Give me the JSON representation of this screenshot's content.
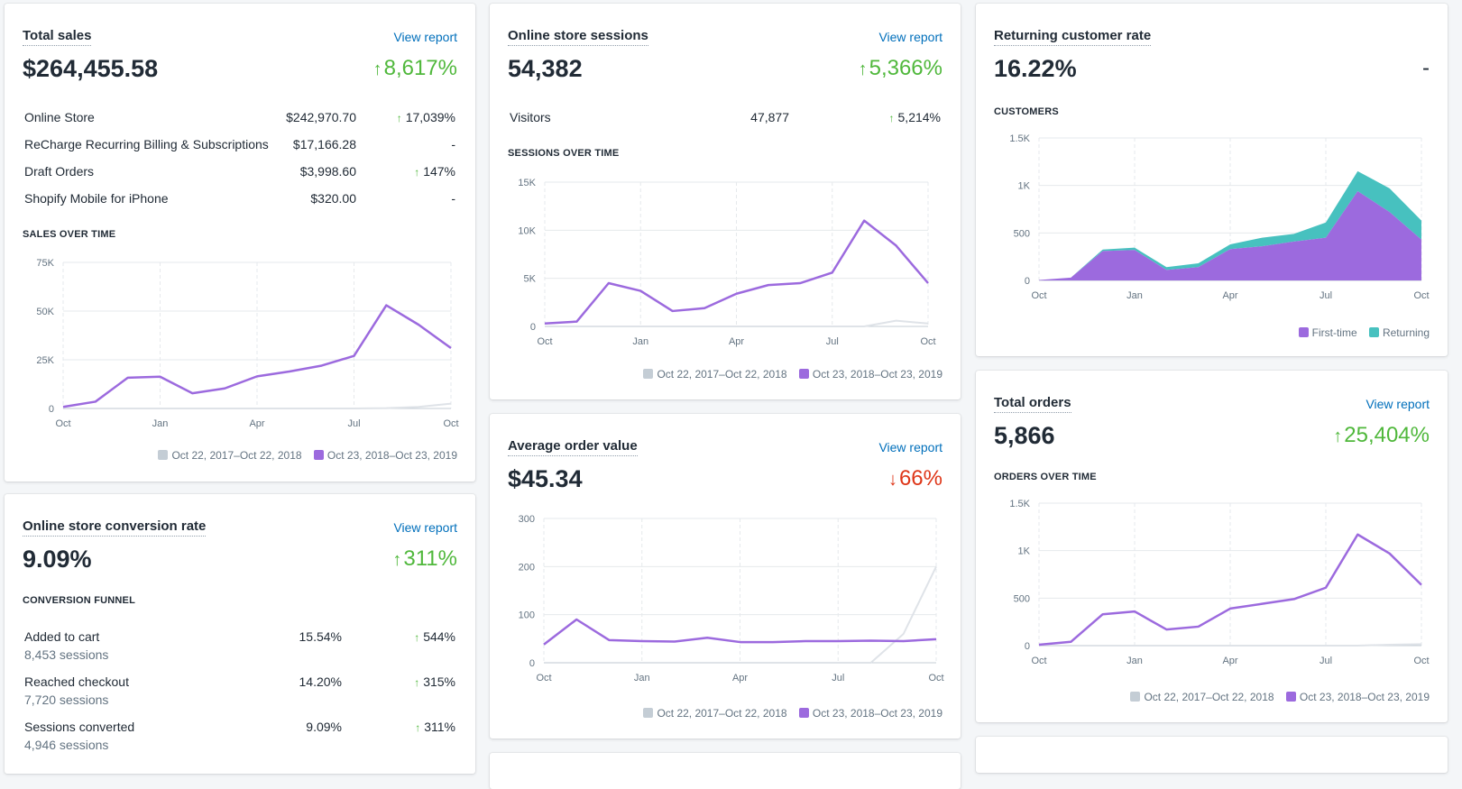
{
  "colors": {
    "current": "#9c6ade",
    "previous": "#dfe3e8",
    "returning": "#47c1bf",
    "up": "#50b83c",
    "down": "#de3618",
    "link": "#006fbb"
  },
  "common": {
    "view_report": "View report",
    "legend_prev": "Oct 22, 2017–Oct 22, 2018",
    "legend_curr": "Oct 23, 2018–Oct 23, 2019",
    "month_ticks": [
      "Oct",
      "Jan",
      "Apr",
      "Jul",
      "Oct"
    ]
  },
  "total_sales": {
    "title": "Total sales",
    "value": "$264,455.58",
    "change": "8,617%",
    "change_dir": "up",
    "rows": [
      {
        "name": "Online Store",
        "amount": "$242,970.70",
        "change": "17,039%",
        "dir": "up"
      },
      {
        "name": "ReCharge Recurring Billing & Subscriptions",
        "amount": "$17,166.28",
        "change": "-",
        "dir": "none"
      },
      {
        "name": "Draft Orders",
        "amount": "$3,998.60",
        "change": "147%",
        "dir": "up"
      },
      {
        "name": "Shopify Mobile for iPhone",
        "amount": "$320.00",
        "change": "-",
        "dir": "none"
      }
    ],
    "chart_label": "SALES OVER TIME"
  },
  "sessions": {
    "title": "Online store sessions",
    "value": "54,382",
    "change": "5,366%",
    "change_dir": "up",
    "rows": [
      {
        "name": "Visitors",
        "amount": "47,877",
        "change": "5,214%",
        "dir": "up"
      }
    ],
    "chart_label": "SESSIONS OVER TIME"
  },
  "returning": {
    "title": "Returning customer rate",
    "value": "16.22%",
    "change": "-",
    "chart_label": "CUSTOMERS",
    "legend_first": "First-time",
    "legend_returning": "Returning"
  },
  "conversion": {
    "title": "Online store conversion rate",
    "value": "9.09%",
    "change": "311%",
    "change_dir": "up",
    "section_label": "CONVERSION FUNNEL",
    "rows": [
      {
        "name": "Added to cart",
        "sub": "8,453 sessions",
        "pct": "15.54%",
        "change": "544%"
      },
      {
        "name": "Reached checkout",
        "sub": "7,720 sessions",
        "pct": "14.20%",
        "change": "315%"
      },
      {
        "name": "Sessions converted",
        "sub": "4,946 sessions",
        "pct": "9.09%",
        "change": "311%"
      }
    ]
  },
  "aov": {
    "title": "Average order value",
    "value": "$45.34",
    "change": "66%",
    "change_dir": "down"
  },
  "orders": {
    "title": "Total orders",
    "value": "5,866",
    "change": "25,404%",
    "change_dir": "up",
    "chart_label": "ORDERS OVER TIME"
  },
  "chart_data": [
    {
      "id": "sales",
      "type": "line",
      "x_ticks": [
        "Oct",
        "Jan",
        "Apr",
        "Jul",
        "Oct"
      ],
      "y_ticks": [
        "0",
        "25K",
        "50K",
        "75K"
      ],
      "ylim": [
        0,
        75000
      ],
      "series": [
        {
          "name": "Oct 23, 2018–Oct 23, 2019",
          "values": [
            800,
            3500,
            15800,
            16300,
            7800,
            10300,
            16500,
            19000,
            22000,
            27000,
            53000,
            43000,
            31000
          ]
        },
        {
          "name": "Oct 22, 2017–Oct 22, 2018",
          "values": [
            0,
            0,
            0,
            0,
            0,
            0,
            0,
            0,
            0,
            0,
            200,
            800,
            2500
          ]
        }
      ]
    },
    {
      "id": "sessions",
      "type": "line",
      "x_ticks": [
        "Oct",
        "Jan",
        "Apr",
        "Jul",
        "Oct"
      ],
      "y_ticks": [
        "0",
        "5K",
        "10K",
        "15K"
      ],
      "ylim": [
        0,
        15000
      ],
      "series": [
        {
          "name": "Oct 23, 2018–Oct 23, 2019",
          "values": [
            300,
            500,
            4500,
            3700,
            1600,
            1900,
            3400,
            4300,
            4500,
            5600,
            11000,
            8400,
            4500
          ]
        },
        {
          "name": "Oct 22, 2017–Oct 22, 2018",
          "values": [
            0,
            0,
            0,
            0,
            0,
            0,
            0,
            0,
            0,
            0,
            0,
            600,
            300
          ]
        }
      ]
    },
    {
      "id": "customers",
      "type": "area",
      "x_ticks": [
        "Oct",
        "Jan",
        "Apr",
        "Jul",
        "Oct"
      ],
      "y_ticks": [
        "0",
        "500",
        "1K",
        "1.5K"
      ],
      "ylim": [
        0,
        1500
      ],
      "series": [
        {
          "name": "First-time",
          "values": [
            5,
            30,
            310,
            320,
            110,
            140,
            330,
            360,
            410,
            450,
            940,
            720,
            430
          ]
        },
        {
          "name": "Returning",
          "values": [
            0,
            0,
            15,
            25,
            30,
            40,
            50,
            90,
            80,
            160,
            210,
            250,
            200
          ]
        }
      ]
    },
    {
      "id": "aov",
      "type": "line",
      "x_ticks": [
        "Oct",
        "Jan",
        "Apr",
        "Jul",
        "Oct"
      ],
      "y_ticks": [
        "0",
        "100",
        "200",
        "300"
      ],
      "ylim": [
        0,
        300
      ],
      "series": [
        {
          "name": "Oct 23, 2018–Oct 23, 2019",
          "values": [
            38,
            90,
            47,
            45,
            44,
            52,
            43,
            43,
            45,
            45,
            46,
            45,
            49
          ]
        },
        {
          "name": "Oct 22, 2017–Oct 22, 2018",
          "values": [
            0,
            0,
            0,
            0,
            0,
            0,
            0,
            0,
            0,
            0,
            0,
            60,
            200
          ]
        }
      ]
    },
    {
      "id": "orders",
      "type": "line",
      "x_ticks": [
        "Oct",
        "Jan",
        "Apr",
        "Jul",
        "Oct"
      ],
      "y_ticks": [
        "0",
        "500",
        "1K",
        "1.5K"
      ],
      "ylim": [
        0,
        1500
      ],
      "series": [
        {
          "name": "Oct 23, 2018–Oct 23, 2019",
          "values": [
            10,
            40,
            330,
            360,
            170,
            200,
            390,
            440,
            490,
            610,
            1170,
            970,
            640
          ]
        },
        {
          "name": "Oct 22, 2017–Oct 22, 2018",
          "values": [
            0,
            0,
            0,
            0,
            0,
            0,
            0,
            0,
            0,
            0,
            0,
            10,
            15
          ]
        }
      ]
    }
  ]
}
